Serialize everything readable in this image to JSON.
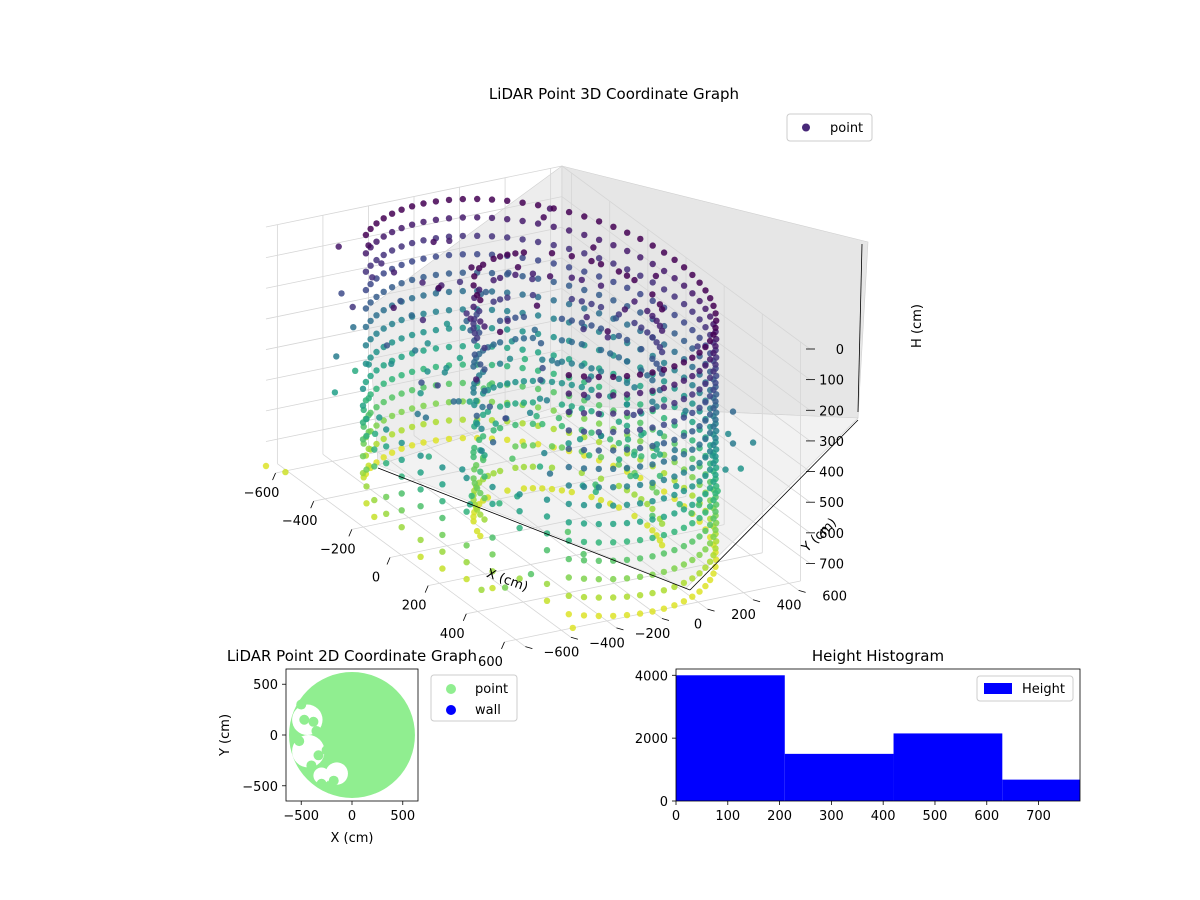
{
  "chart_data": [
    {
      "type": "scatter3d",
      "title": "LiDAR Point 3D Coordinate Graph",
      "xlabel": "X (cm)",
      "ylabel": "Y (cm)",
      "zlabel": "H (cm)",
      "xlim": [
        -650,
        650
      ],
      "ylim": [
        -650,
        650
      ],
      "zlim": [
        780,
        0
      ],
      "xticks": [
        "−600",
        "−400",
        "−200",
        "0",
        "200",
        "400",
        "600"
      ],
      "yticks": [
        "−600",
        "−400",
        "−200",
        "0",
        "200",
        "400",
        "600"
      ],
      "zticks": [
        "0",
        "100",
        "200",
        "300",
        "400",
        "500",
        "600",
        "700"
      ],
      "legend": [
        {
          "label": "point",
          "color": "#482878"
        }
      ],
      "legend_position": "top-right",
      "colormap": "viridis",
      "grid": true,
      "structures": {
        "wall_ring": {
          "center": [
            0,
            0
          ],
          "radius": 600,
          "h_range": [
            0,
            780
          ]
        },
        "inner_arc": {
          "center": [
            100,
            50
          ],
          "radius": 320,
          "h_range": [
            0,
            780
          ]
        },
        "outliers": [
          {
            "x": -650,
            "y": -650,
            "h": 780
          },
          {
            "x": -560,
            "y": -640,
            "h": 760
          },
          {
            "x": 420,
            "y": -600,
            "h": 700
          },
          {
            "x": 520,
            "y": -580,
            "h": 650
          },
          {
            "x": 560,
            "y": -500,
            "h": 600
          },
          {
            "x": 600,
            "y": -350,
            "h": 780
          },
          {
            "x": -600,
            "y": -300,
            "h": 500
          },
          {
            "x": -620,
            "y": 120,
            "h": 420
          }
        ]
      }
    },
    {
      "type": "scatter",
      "title": "LiDAR Point 2D Coordinate Graph",
      "xlabel": "X (cm)",
      "ylabel": "Y (cm)",
      "xlim": [
        -650,
        650
      ],
      "ylim": [
        -650,
        650
      ],
      "xticks": [
        -500,
        0,
        500
      ],
      "yticks": [
        -500,
        0,
        500
      ],
      "series": [
        {
          "name": "point",
          "color": "#90ee90"
        },
        {
          "name": "wall",
          "color": "#0000ff"
        }
      ],
      "legend_position": "outside-right",
      "holes": [
        {
          "x": -440,
          "y": 150,
          "r": 150
        },
        {
          "x": -430,
          "y": -160,
          "r": 160
        },
        {
          "x": -150,
          "y": -380,
          "r": 110
        },
        {
          "x": -300,
          "y": -400,
          "r": 80
        }
      ]
    },
    {
      "type": "histogram",
      "title": "Height Histogram",
      "xlim": [
        0,
        780
      ],
      "ylim": [
        0,
        4200
      ],
      "xticks": [
        0,
        100,
        200,
        300,
        400,
        500,
        600,
        700
      ],
      "yticks": [
        0,
        2000,
        4000
      ],
      "bin_edges": [
        0,
        210,
        420,
        630,
        780
      ],
      "values": [
        4000,
        1500,
        2150,
        680
      ],
      "color": "#0000ff",
      "series": [
        {
          "name": "Height",
          "color": "#0000ff"
        }
      ],
      "legend_position": "top-right"
    }
  ]
}
